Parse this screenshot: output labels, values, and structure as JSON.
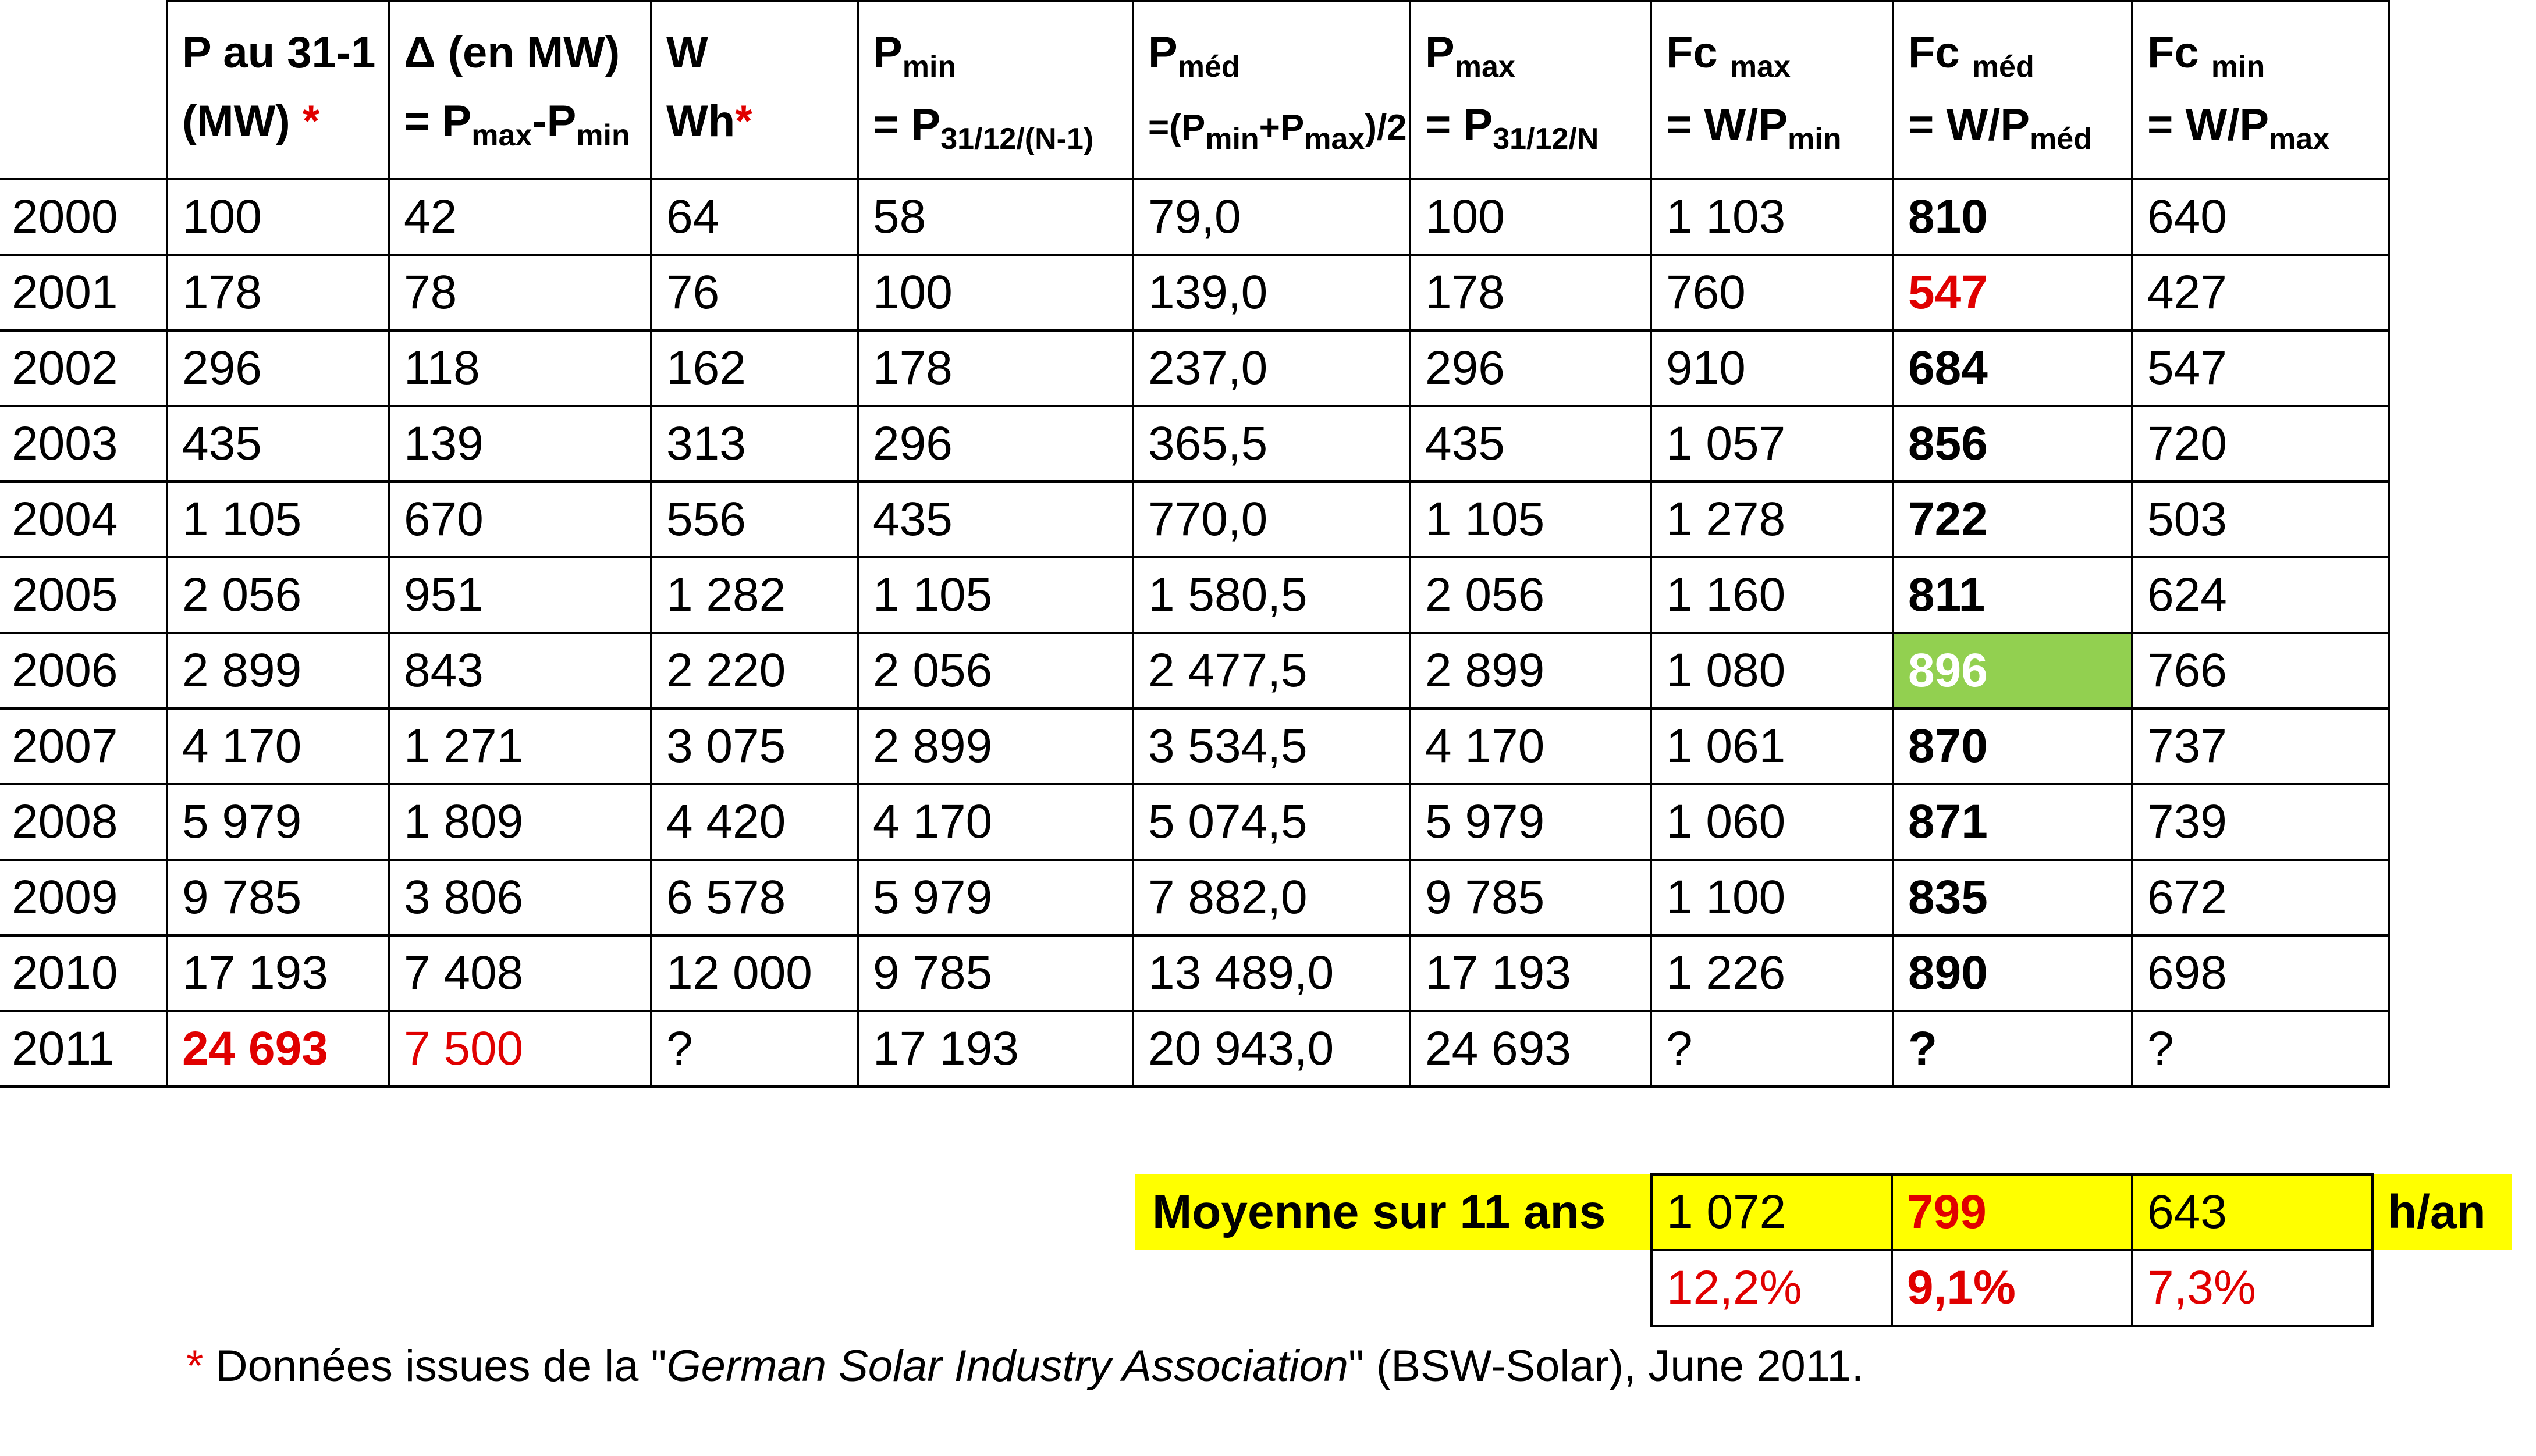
{
  "headers": [
    {
      "id": "year",
      "main": "",
      "sub": "",
      "line2": "",
      "line2_sub": "",
      "star": ""
    },
    {
      "id": "p",
      "main": "P   au   31-1",
      "sub": "",
      "line2": "(MW) ",
      "line2_sub": "",
      "star": "*"
    },
    {
      "id": "delta",
      "main": "Δ (en MW)",
      "sub": "",
      "line2": "= P",
      "line2_sub": "max",
      "line2_rest": "-P",
      "line2_sub2": "min",
      "star": ""
    },
    {
      "id": "w",
      "main": "W",
      "sub": "",
      "line2": "Wh",
      "line2_sub": "",
      "star": "*"
    },
    {
      "id": "pmin",
      "main": "P",
      "sub": "min",
      "line2": "= P",
      "line2_sub": "31/12/(N-1)",
      "star": ""
    },
    {
      "id": "pmed",
      "main": "P",
      "sub": "méd",
      "line2": "=(P",
      "line2_sub": "min",
      "line2_rest": "+P",
      "line2_sub2": "max",
      "line2_tail": ")/2",
      "star": ""
    },
    {
      "id": "pmax",
      "main": "P",
      "sub": "max",
      "line2": "= P",
      "line2_sub": "31/12/N",
      "star": ""
    },
    {
      "id": "fcmax",
      "main": "Fc ",
      "sub": "max",
      "line2": "= W/P",
      "line2_sub": "min",
      "star": ""
    },
    {
      "id": "fcmed",
      "main": "Fc ",
      "sub": "méd",
      "line2": "= W/P",
      "line2_sub": "méd",
      "star": ""
    },
    {
      "id": "fcmin",
      "main": "Fc ",
      "sub": "min",
      "line2": "= W/P",
      "line2_sub": "max",
      "star": ""
    }
  ],
  "rows": [
    {
      "year": "2000",
      "p": "100",
      "delta": "42",
      "w": "64",
      "pmin": "58",
      "pmed": "79,0",
      "pmax": "100",
      "fcmax": "1 103",
      "fcmed": "810",
      "fcmin": "640"
    },
    {
      "year": "2001",
      "p": "178",
      "delta": "78",
      "w": "76",
      "pmin": "100",
      "pmed": "139,0",
      "pmax": "178",
      "fcmax": "760",
      "fcmed": "547",
      "fcmin": "427"
    },
    {
      "year": "2002",
      "p": "296",
      "delta": "118",
      "w": "162",
      "pmin": "178",
      "pmed": "237,0",
      "pmax": "296",
      "fcmax": "910",
      "fcmed": "684",
      "fcmin": "547"
    },
    {
      "year": "2003",
      "p": "435",
      "delta": "139",
      "w": "313",
      "pmin": "296",
      "pmed": "365,5",
      "pmax": "435",
      "fcmax": "1 057",
      "fcmed": "856",
      "fcmin": "720"
    },
    {
      "year": "2004",
      "p": "1 105",
      "delta": "670",
      "w": "556",
      "pmin": "435",
      "pmed": "770,0",
      "pmax": "1 105",
      "fcmax": "1 278",
      "fcmed": "722",
      "fcmin": "503"
    },
    {
      "year": "2005",
      "p": "2 056",
      "delta": "951",
      "w": "1 282",
      "pmin": "1 105",
      "pmed": "1 580,5",
      "pmax": "2 056",
      "fcmax": "1 160",
      "fcmed": "811",
      "fcmin": "624"
    },
    {
      "year": "2006",
      "p": "2 899",
      "delta": "843",
      "w": "2 220",
      "pmin": "2 056",
      "pmed": "2 477,5",
      "pmax": "2 899",
      "fcmax": "1 080",
      "fcmed": "896",
      "fcmin": "766"
    },
    {
      "year": "2007",
      "p": "4 170",
      "delta": "1 271",
      "w": "3 075",
      "pmin": "2 899",
      "pmed": "3 534,5",
      "pmax": "4 170",
      "fcmax": "1 061",
      "fcmed": "870",
      "fcmin": "737"
    },
    {
      "year": "2008",
      "p": "5 979",
      "delta": "1 809",
      "w": "4 420",
      "pmin": "4 170",
      "pmed": "5 074,5",
      "pmax": "5 979",
      "fcmax": "1 060",
      "fcmed": "871",
      "fcmin": "739"
    },
    {
      "year": "2009",
      "p": "9 785",
      "delta": "3 806",
      "w": "6 578",
      "pmin": "5 979",
      "pmed": "7 882,0",
      "pmax": "9 785",
      "fcmax": "1 100",
      "fcmed": "835",
      "fcmin": "672"
    },
    {
      "year": "2010",
      "p": "17 193",
      "delta": "7 408",
      "w": "12 000",
      "pmin": "9 785",
      "pmed": "13 489,0",
      "pmax": "17 193",
      "fcmax": "1 226",
      "fcmed": "890",
      "fcmin": "698"
    },
    {
      "year": "2011",
      "p": "24 693",
      "delta": "7 500",
      "w": "?",
      "pmin": "17 193",
      "pmed": "20 943,0",
      "pmax": "24 693",
      "fcmax": "?",
      "fcmed": "?",
      "fcmin": "?"
    }
  ],
  "highlights": {
    "red_cells": [
      "2001.fcmed",
      "2011.p",
      "2011.delta"
    ],
    "bold_cells": [
      "2011.p"
    ],
    "green_cell": "2006.fcmed",
    "red_color": "#e00000",
    "green_color": "#92d050",
    "yellow_color": "#ffff00"
  },
  "summary": {
    "label": "Moyenne sur 11 ans",
    "fcmax": "1 072",
    "fcmed": "799",
    "fcmin": "643",
    "unit": "h/an",
    "pct_fcmax": "12,2%",
    "pct_fcmed": "9,1%",
    "pct_fcmin": "7,3%"
  },
  "footnote": {
    "star": "*",
    "before": " Données issues de la \"",
    "italic": "German Solar Industry Association",
    "after": "\" (BSW-Solar), June 2011."
  }
}
